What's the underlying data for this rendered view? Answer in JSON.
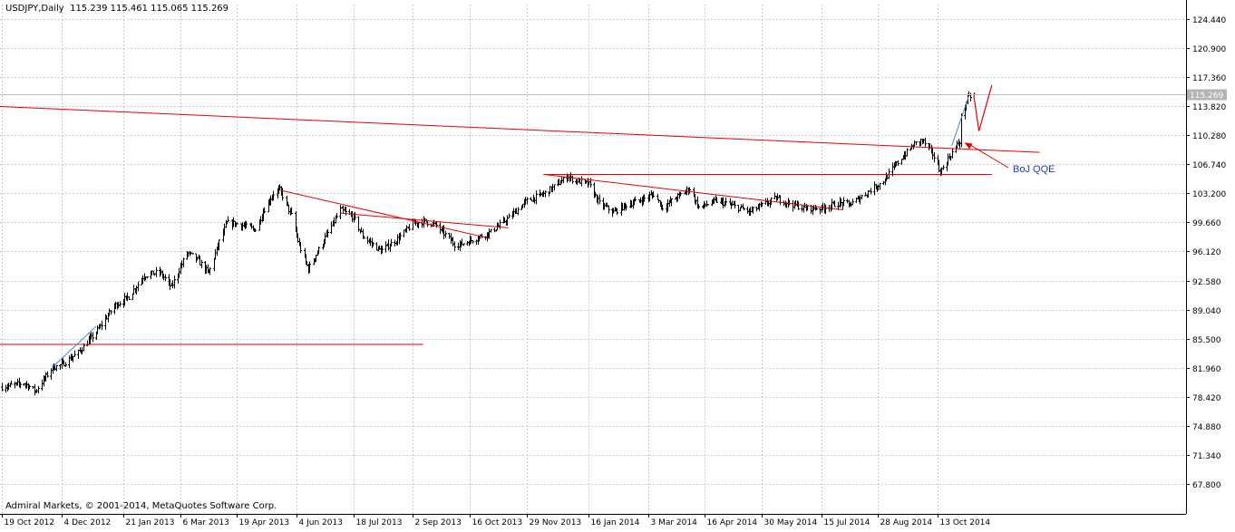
{
  "header": {
    "symbol": "USDJPY,Daily",
    "ohlc": "115.239 115.461 115.065 115.269"
  },
  "footer": {
    "copyright": "Admiral Markets, © 2001-2014, MetaQuotes Software Corp."
  },
  "colors": {
    "background": "#ffffff",
    "bars": "#000000",
    "grid": "#c8c8c8",
    "trendlines": "#e60000",
    "projection": "#3c8cdc",
    "annotation_text": "#1e3cb4",
    "price_tag": "#b4b4b4"
  },
  "chart_data": {
    "type": "ohlc",
    "symbol": "USDJPY",
    "timeframe": "Daily",
    "last": {
      "open": 115.239,
      "high": 115.461,
      "low": 115.065,
      "close": 115.269
    },
    "y_ticks": [
      124.44,
      120.9,
      117.36,
      113.82,
      110.28,
      106.74,
      103.2,
      99.66,
      96.12,
      92.58,
      89.04,
      85.5,
      81.96,
      78.42,
      74.88,
      71.34,
      67.8
    ],
    "y_tick_labels": [
      "124.440",
      "120.900",
      "117.360",
      "113.820",
      "110.280",
      "106.740",
      "103.200",
      "99.660",
      "96.120",
      "92.580",
      "89.040",
      "85.500",
      "81.960",
      "78.420",
      "74.880",
      "71.340",
      "67.800"
    ],
    "x_tick_labels": [
      "19 Oct 2012",
      "4 Dec 2012",
      "21 Jan 2013",
      "6 Mar 2013",
      "19 Apr 2013",
      "4 Jun 2013",
      "18 Jul 2013",
      "2 Sep 2013",
      "16 Oct 2013",
      "29 Nov 2013",
      "16 Jan 2014",
      "3 Mar 2014",
      "16 Apr 2014",
      "30 May 2014",
      "15 Jul 2014",
      "28 Aug 2014",
      "13 Oct 2014"
    ],
    "x_ticks": [
      "2012-10-19",
      "2012-12-04",
      "2013-01-21",
      "2013-03-06",
      "2013-04-19",
      "2013-06-04",
      "2013-07-18",
      "2013-09-02",
      "2013-10-16",
      "2013-11-29",
      "2014-01-16",
      "2014-03-03",
      "2014-04-16",
      "2014-05-30",
      "2014-07-15",
      "2014-08-28",
      "2014-10-13"
    ],
    "price_path": [
      [
        "2012-10-19",
        79.6
      ],
      [
        "2012-11-05",
        80.1
      ],
      [
        "2012-11-14",
        79.1
      ],
      [
        "2012-11-27",
        82.0
      ],
      [
        "2012-12-04",
        82.3
      ],
      [
        "2012-12-17",
        83.8
      ],
      [
        "2012-12-31",
        86.3
      ],
      [
        "2013-01-14",
        89.5
      ],
      [
        "2013-01-25",
        90.6
      ],
      [
        "2013-02-06",
        93.2
      ],
      [
        "2013-02-18",
        93.6
      ],
      [
        "2013-02-27",
        91.8
      ],
      [
        "2013-03-11",
        96.0
      ],
      [
        "2013-03-19",
        95.1
      ],
      [
        "2013-03-28",
        93.5
      ],
      [
        "2013-04-05",
        97.3
      ],
      [
        "2013-04-11",
        99.6
      ],
      [
        "2013-04-19",
        99.5
      ],
      [
        "2013-05-03",
        98.8
      ],
      [
        "2013-05-10",
        101.3
      ],
      [
        "2013-05-17",
        103.2
      ],
      [
        "2013-05-22",
        103.6
      ],
      [
        "2013-05-31",
        100.5
      ],
      [
        "2013-06-06",
        96.8
      ],
      [
        "2013-06-13",
        94.0
      ],
      [
        "2013-06-25",
        97.5
      ],
      [
        "2013-07-08",
        101.2
      ],
      [
        "2013-07-18",
        100.3
      ],
      [
        "2013-07-25",
        98.0
      ],
      [
        "2013-08-08",
        96.2
      ],
      [
        "2013-08-20",
        97.5
      ],
      [
        "2013-09-02",
        99.5
      ],
      [
        "2013-09-11",
        99.8
      ],
      [
        "2013-09-20",
        99.3
      ],
      [
        "2013-10-04",
        97.0
      ],
      [
        "2013-10-09",
        97.0
      ],
      [
        "2013-10-22",
        97.8
      ],
      [
        "2013-11-01",
        98.5
      ],
      [
        "2013-11-15",
        100.2
      ],
      [
        "2013-11-29",
        102.3
      ],
      [
        "2013-12-13",
        103.2
      ],
      [
        "2013-12-31",
        105.3
      ],
      [
        "2014-01-02",
        105.0
      ],
      [
        "2014-01-16",
        104.3
      ],
      [
        "2014-01-24",
        102.0
      ],
      [
        "2014-02-04",
        100.9
      ],
      [
        "2014-02-14",
        101.8
      ],
      [
        "2014-02-24",
        102.3
      ],
      [
        "2014-03-07",
        103.1
      ],
      [
        "2014-03-14",
        101.5
      ],
      [
        "2014-04-04",
        103.8
      ],
      [
        "2014-04-11",
        101.5
      ],
      [
        "2014-04-25",
        102.3
      ],
      [
        "2014-05-21",
        101.0
      ],
      [
        "2014-06-10",
        102.6
      ],
      [
        "2014-07-01",
        101.4
      ],
      [
        "2014-07-15",
        101.4
      ],
      [
        "2014-07-28",
        102.0
      ],
      [
        "2014-08-07",
        101.9
      ],
      [
        "2014-08-20",
        103.4
      ],
      [
        "2014-09-01",
        104.7
      ],
      [
        "2014-09-12",
        107.0
      ],
      [
        "2014-09-25",
        109.2
      ],
      [
        "2014-10-01",
        109.7
      ],
      [
        "2014-10-09",
        108.0
      ],
      [
        "2014-10-15",
        105.8
      ],
      [
        "2014-10-24",
        108.2
      ],
      [
        "2014-10-30",
        109.5
      ],
      [
        "2014-10-31",
        112.4
      ],
      [
        "2014-11-05",
        114.8
      ],
      [
        "2014-11-10",
        115.3
      ]
    ],
    "annotations": [
      {
        "text": "BoJ QQE",
        "points_to": [
          "2014-10-31",
          109.4
        ]
      }
    ],
    "trendlines": [
      {
        "role": "long-term resistance",
        "from": [
          "2012-10-15",
          113.8
        ],
        "to": [
          "2014-12-31",
          108.2
        ]
      },
      {
        "role": "horizontal",
        "from": [
          "2012-10-15",
          84.8
        ],
        "to": [
          "2013-09-10",
          84.8
        ]
      },
      {
        "role": "horizontal",
        "from": [
          "2013-12-12",
          105.5
        ],
        "to": [
          "2014-11-24",
          105.5
        ]
      },
      {
        "role": "descending wedge top",
        "from": [
          "2013-05-22",
          103.6
        ],
        "to": [
          "2013-11-01",
          97.7
        ]
      },
      {
        "role": "descending wedge bottom",
        "from": [
          "2013-07-08",
          100.8
        ],
        "to": [
          "2013-11-15",
          99.0
        ]
      },
      {
        "role": "descending channel top",
        "from": [
          "2013-12-13",
          105.5
        ],
        "to": [
          "2014-08-01",
          101.2
        ]
      }
    ],
    "projections": [
      {
        "kind": "blue leg",
        "from": [
          "2012-11-27",
          82.0
        ],
        "to": [
          "2012-12-31",
          87.0
        ]
      },
      {
        "kind": "blue leg",
        "from": [
          "2014-10-24",
          109.0
        ],
        "to": [
          "2014-11-06",
          115.0
        ]
      },
      {
        "kind": "red zigzag",
        "points": [
          [
            "2014-11-10",
            115.1
          ],
          [
            "2014-11-14",
            110.8
          ],
          [
            "2014-11-24",
            116.4
          ]
        ]
      }
    ]
  }
}
